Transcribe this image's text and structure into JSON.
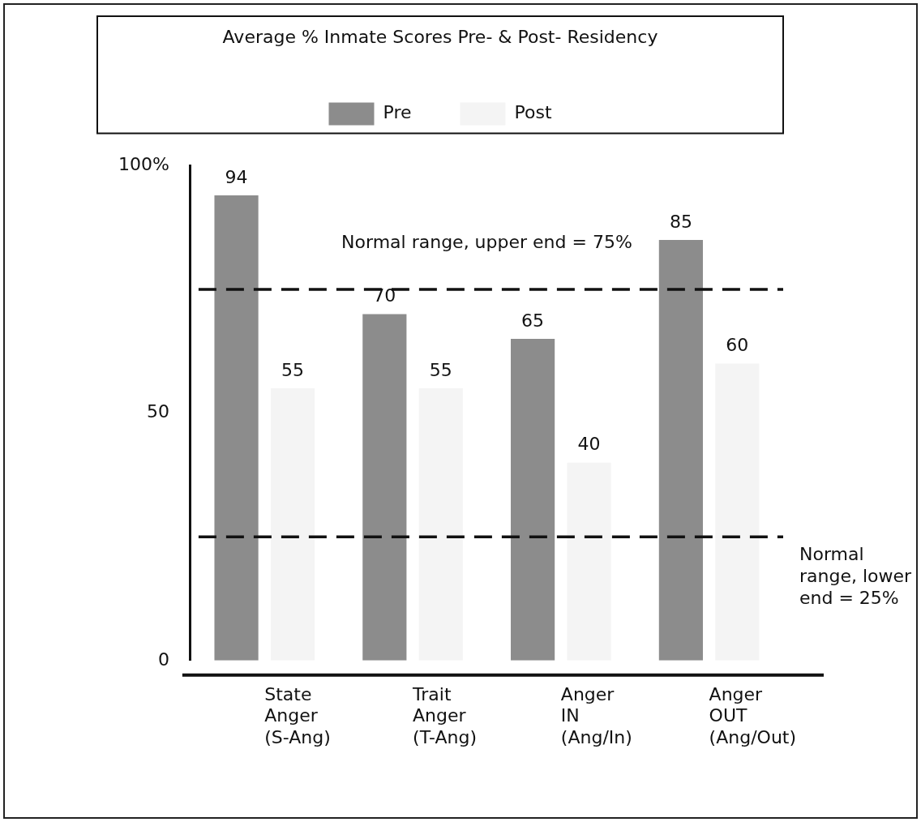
{
  "chart_data": {
    "type": "bar",
    "legend_title": "Average % Inmate Scores Pre- & Post- Residency",
    "categories": [
      "State Anger (S-Ang)",
      "Trait Anger (T-Ang)",
      "Anger IN (Ang/In)",
      "Anger OUT (Ang/Out)"
    ],
    "series": [
      {
        "name": "Pre",
        "color": "#8c8c8c",
        "values": [
          94,
          70,
          65,
          85
        ]
      },
      {
        "name": "Post",
        "color": "#f4f4f4",
        "values": [
          55,
          55,
          40,
          60
        ]
      }
    ],
    "ylim": [
      0,
      100
    ],
    "yticks": [
      0,
      50,
      {
        "value": 100,
        "label": "100%"
      }
    ],
    "ref_lines": [
      {
        "axis": "y",
        "value": 75,
        "label": "Normal range, upper end = 75%",
        "line_style": "dashed"
      },
      {
        "axis": "y",
        "value": 25,
        "label": "Normal range, lower end = 25%",
        "line_style": "dashed"
      }
    ],
    "data_labels": true,
    "legend": "top",
    "grid": false
  }
}
